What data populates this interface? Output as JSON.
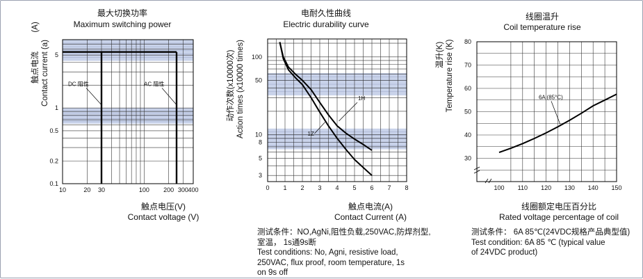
{
  "chart_data": [
    {
      "type": "line",
      "title": "最大切换功率",
      "subtitle": "Maximum switching power",
      "xlabel_cn": "触点电压(V)",
      "xlabel": "Contact voltage (V)",
      "ylabel_cn": "触点电流",
      "ylabel": "Contact current (a)",
      "ylabel_unit": "(A)",
      "x_scale": "log",
      "y_scale": "log",
      "xlim": [
        10,
        400
      ],
      "ylim": [
        0.1,
        8
      ],
      "x_ticks": [
        "10",
        "20",
        "30",
        "100",
        "200",
        "300",
        "400"
      ],
      "y_ticks": [
        "5",
        "1",
        "0.5",
        "0.2",
        "0.1"
      ],
      "bands_y": [
        [
          4.2,
          8
        ],
        [
          0.62,
          1.0
        ]
      ],
      "series": [
        {
          "name": "DC 阻性",
          "x": [
            30,
            30
          ],
          "y": [
            0.1,
            5.5
          ]
        },
        {
          "name": "",
          "x": [
            10,
            250
          ],
          "y": [
            5.5,
            5.5
          ]
        },
        {
          "name": "AC 阻性",
          "x": [
            250,
            250
          ],
          "y": [
            0.1,
            5.5
          ]
        }
      ],
      "annotations": [
        {
          "text": "DC 阻性",
          "x": 24,
          "y": 1.8
        },
        {
          "text": "AC 阻性",
          "x": 190,
          "y": 1.8
        }
      ]
    },
    {
      "type": "line",
      "title": "电耐久性曲线",
      "subtitle": "Electric durability curve",
      "xlabel_cn": "触点电流(A)",
      "xlabel": "Contact Current (A)",
      "ylabel_cn": "动作次数(x10000次)",
      "ylabel": "Action times (x10000 times)",
      "y_scale": "log",
      "xlim": [
        0,
        8
      ],
      "ylim": [
        2.5,
        170
      ],
      "x_ticks": [
        "0",
        "1",
        "2",
        "3",
        "4",
        "5",
        "6",
        "7",
        "8"
      ],
      "y_ticks": [
        "100",
        "50",
        "10",
        "8",
        "5",
        "3"
      ],
      "bands_y": [
        [
          32,
          62
        ],
        [
          6.5,
          12
        ]
      ],
      "series": [
        {
          "name": "1H",
          "x": [
            0.7,
            0.9,
            1.2,
            1.6,
            2.0,
            2.5,
            3.0,
            3.5,
            4.0,
            4.5,
            5.0,
            5.5,
            6.0
          ],
          "y": [
            155,
            100,
            74,
            60,
            50,
            38,
            26,
            18,
            13,
            10.5,
            8.8,
            7.5,
            6.3
          ]
        },
        {
          "name": "1Z",
          "x": [
            0.7,
            0.9,
            1.2,
            1.6,
            2.0,
            2.5,
            3.0,
            3.5,
            4.0,
            4.5,
            5.0,
            5.5,
            6.0
          ],
          "y": [
            155,
            95,
            68,
            54,
            44,
            30,
            19.5,
            13,
            9,
            6.5,
            4.8,
            3.8,
            3.0
          ]
        }
      ],
      "annotations": [
        {
          "text": "1H",
          "x": 5.2,
          "y": 26
        },
        {
          "text": "1Z",
          "x": 2.3,
          "y": 11.5
        }
      ]
    },
    {
      "type": "line",
      "title": "线圈温升",
      "subtitle": "Coil temperature rise",
      "xlabel_cn": "线圈额定电压百分比",
      "xlabel": "Rated voltage percentage of coil",
      "ylabel_cn": "温升(K)",
      "ylabel": "Temperature rise (K)",
      "xlim": [
        100,
        150
      ],
      "ylim": [
        20,
        80
      ],
      "x_ticks": [
        "100",
        "110",
        "120",
        "130",
        "140",
        "150"
      ],
      "y_ticks": [
        "80",
        "70",
        "60",
        "50",
        "40",
        "30"
      ],
      "series": [
        {
          "name": "6A (85°C)",
          "x": [
            100,
            105,
            110,
            115,
            120,
            125,
            130,
            135,
            140,
            145,
            150
          ],
          "y": [
            32.5,
            34.3,
            36.3,
            38.5,
            40.9,
            43.5,
            46.3,
            49.3,
            52.5,
            55.0,
            57.5
          ]
        }
      ],
      "annotations": [
        {
          "text": "6A (85°C)",
          "x": 121,
          "y": 56
        }
      ]
    }
  ],
  "conditions": {
    "durability": [
      "测试条件：NO,AgNi,阻性负载,250VAC,防焊剂型,",
      "室温，  1s通9s断",
      "Test conditions: No, Agni, resistive load,",
      "250VAC, flux proof, room temperature, 1s",
      "on 9s off"
    ],
    "temperature": [
      "测试条件：  6A 85℃(24VDC规格产品典型值)",
      "Test condition: 6A 85 ℃ (typical value",
      "of 24VDC product)"
    ]
  },
  "colors": {
    "band": "#c9d3ea",
    "band_light": "#e7ecf6",
    "grid": "#333333",
    "curve": "#000000",
    "frame": "#9aa0b0"
  }
}
